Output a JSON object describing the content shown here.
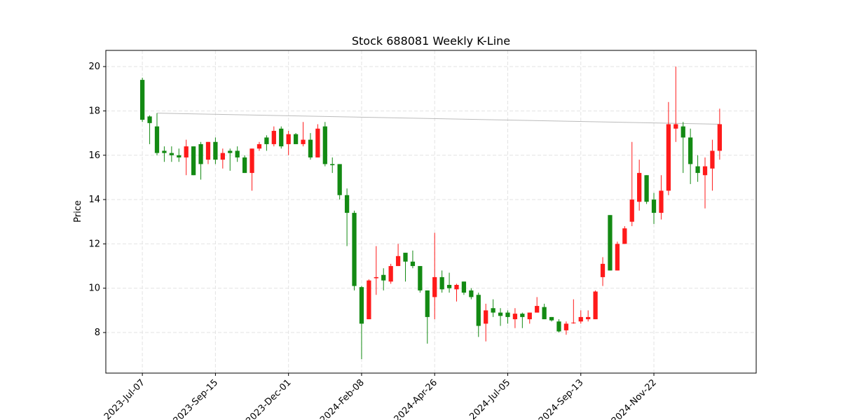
{
  "chart_data": {
    "type": "candlestick",
    "title": "Stock 688081 Weekly K-Line",
    "ylabel": "Price",
    "categories": [
      "2023-Jul-07",
      null,
      null,
      null,
      null,
      null,
      null,
      null,
      null,
      null,
      "2023-Sep-15",
      null,
      null,
      null,
      null,
      null,
      null,
      null,
      null,
      null,
      "2023-Dec-01",
      null,
      null,
      null,
      null,
      null,
      null,
      null,
      null,
      null,
      "2024-Feb-08",
      null,
      null,
      null,
      null,
      null,
      null,
      null,
      null,
      null,
      "2024-Apr-26",
      null,
      null,
      null,
      null,
      null,
      null,
      null,
      null,
      null,
      "2024-Jul-05",
      null,
      null,
      null,
      null,
      null,
      null,
      null,
      null,
      null,
      "2024-Sep-13",
      null,
      null,
      null,
      null,
      null,
      null,
      null,
      null,
      null,
      "2024-Nov-22",
      null,
      null,
      null,
      null,
      null,
      null,
      null,
      null,
      null
    ],
    "open": [
      19.4,
      17.75,
      17.3,
      16.2,
      16.1,
      16.0,
      15.9,
      16.4,
      16.5,
      15.8,
      16.6,
      15.8,
      16.2,
      16.2,
      15.9,
      15.2,
      16.3,
      16.8,
      16.5,
      17.2,
      16.5,
      16.95,
      16.5,
      16.7,
      15.9,
      17.3,
      15.6,
      15.6,
      14.2,
      13.4,
      10.05,
      8.6,
      10.45,
      10.6,
      10.3,
      11.0,
      11.6,
      11.2,
      11.0,
      9.9,
      9.6,
      10.5,
      10.15,
      9.95,
      10.3,
      9.9,
      9.7,
      8.4,
      9.1,
      8.9,
      8.9,
      8.6,
      8.85,
      8.6,
      8.9,
      9.15,
      8.7,
      8.5,
      8.1,
      8.45,
      8.5,
      8.6,
      8.6,
      10.5,
      13.3,
      10.8,
      12.0,
      13.0,
      13.9,
      15.1,
      14.0,
      13.4,
      14.4,
      17.2,
      17.3,
      16.8,
      15.5,
      15.1,
      15.4,
      16.2
    ],
    "high": [
      19.5,
      17.8,
      17.9,
      16.4,
      16.4,
      16.3,
      16.7,
      16.4,
      16.6,
      16.6,
      16.8,
      16.3,
      16.3,
      16.4,
      16.0,
      16.3,
      16.6,
      16.9,
      17.3,
      17.3,
      17.1,
      17.0,
      17.5,
      17.0,
      17.4,
      17.5,
      15.9,
      15.6,
      14.5,
      13.5,
      10.1,
      10.4,
      11.9,
      10.9,
      11.1,
      12.0,
      11.6,
      11.7,
      11.0,
      9.9,
      12.5,
      10.8,
      10.7,
      10.2,
      10.3,
      10.0,
      9.8,
      9.3,
      9.5,
      9.1,
      9.0,
      9.1,
      8.9,
      8.9,
      9.6,
      9.3,
      8.7,
      8.6,
      8.5,
      9.5,
      9.0,
      9.0,
      9.9,
      11.4,
      13.3,
      12.1,
      12.8,
      16.6,
      15.8,
      15.1,
      14.3,
      15.1,
      18.4,
      20.0,
      17.5,
      17.2,
      16.0,
      15.9,
      16.7,
      18.1
    ],
    "low": [
      17.5,
      16.5,
      16.0,
      15.7,
      15.7,
      15.7,
      15.1,
      15.1,
      14.9,
      15.6,
      15.6,
      15.4,
      15.3,
      15.7,
      15.2,
      14.4,
      16.2,
      16.2,
      16.4,
      16.3,
      16.0,
      16.5,
      16.4,
      15.8,
      15.9,
      15.5,
      15.2,
      14.0,
      11.9,
      9.9,
      6.8,
      8.6,
      9.7,
      9.9,
      10.2,
      11.0,
      10.3,
      10.9,
      9.8,
      7.5,
      8.6,
      9.8,
      9.8,
      9.4,
      9.7,
      9.5,
      7.8,
      7.6,
      8.7,
      8.3,
      8.4,
      8.2,
      8.2,
      8.4,
      8.9,
      8.6,
      8.5,
      8.0,
      7.9,
      8.4,
      8.4,
      8.5,
      8.6,
      10.1,
      10.8,
      10.8,
      12.0,
      12.8,
      13.5,
      13.8,
      12.9,
      13.1,
      14.2,
      16.6,
      15.2,
      14.7,
      14.8,
      13.6,
      14.4,
      15.8
    ],
    "close": [
      17.6,
      17.45,
      16.1,
      16.1,
      16.0,
      15.9,
      16.4,
      15.1,
      15.6,
      16.6,
      15.8,
      16.1,
      16.1,
      15.9,
      15.2,
      16.3,
      16.5,
      16.5,
      17.1,
      16.4,
      16.95,
      16.5,
      16.7,
      15.9,
      17.2,
      15.6,
      15.55,
      14.2,
      13.4,
      10.1,
      8.4,
      10.35,
      10.5,
      10.35,
      11.0,
      11.45,
      11.2,
      11.0,
      9.9,
      8.7,
      10.5,
      9.95,
      10.0,
      10.15,
      9.8,
      9.6,
      8.3,
      9.0,
      8.9,
      8.75,
      8.7,
      8.85,
      8.7,
      8.9,
      9.2,
      8.6,
      8.55,
      8.05,
      8.4,
      8.45,
      8.7,
      8.7,
      9.85,
      11.1,
      10.8,
      12.0,
      12.7,
      14.0,
      15.2,
      13.9,
      13.4,
      14.4,
      17.4,
      17.4,
      16.8,
      15.6,
      15.2,
      15.5,
      16.2,
      17.4
    ],
    "up_color": "#ff1a1a",
    "down_color": "#138a13",
    "trendline": {
      "x": [
        2,
        79
      ],
      "y": [
        17.9,
        17.4
      ],
      "color": "#bbbbbb"
    },
    "xlim": [
      -5,
      84
    ],
    "ylim": [
      6.17,
      20.73
    ],
    "yticks": [
      8,
      10,
      12,
      14,
      16,
      18,
      20
    ],
    "grid": true
  }
}
